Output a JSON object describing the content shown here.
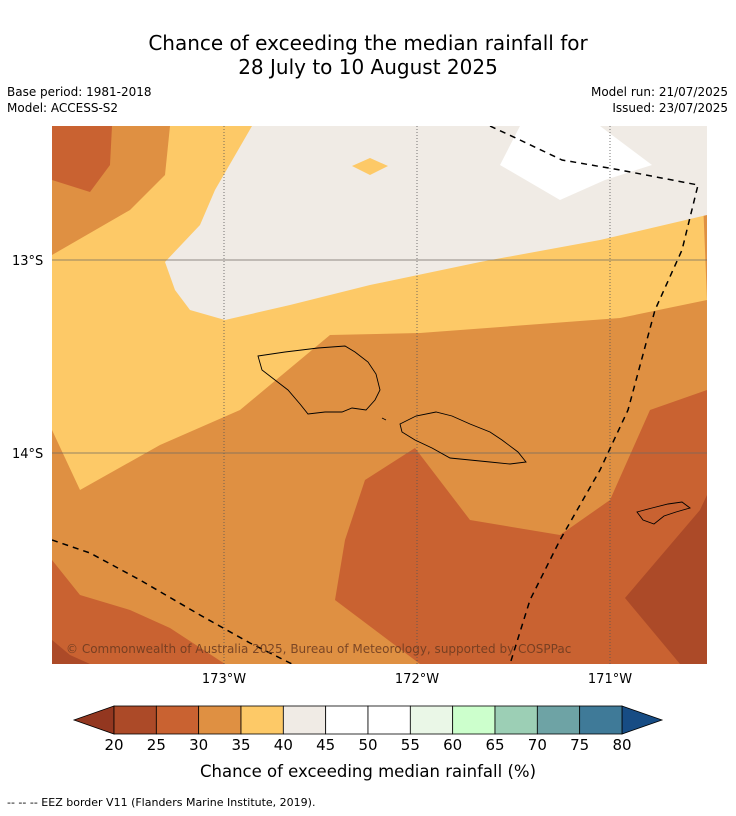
{
  "title": {
    "line1": "Chance of exceeding the median rainfall for",
    "line2": "28 July to 10 August 2025"
  },
  "info": {
    "base_period": "Base period: 1981-2018",
    "model": "Model: ACCESS-S2",
    "model_run": "Model run: 21/07/2025",
    "issued": "Issued: 23/07/2025"
  },
  "map": {
    "lat_labels": [
      {
        "value": -13,
        "text": "13°S"
      },
      {
        "value": -14,
        "text": "14°S"
      }
    ],
    "lon_labels": [
      {
        "value": -173,
        "text": "173°W"
      },
      {
        "value": -172,
        "text": "172°W"
      },
      {
        "value": -171,
        "text": "171°W"
      }
    ],
    "copyright": "© Commonwealth of Australia 2025, Bureau of Meteorology, supported by COSPPac"
  },
  "colorbar": {
    "title": "Chance of exceeding median rainfall (%)",
    "ticks": [
      "20",
      "25",
      "30",
      "35",
      "40",
      "45",
      "50",
      "55",
      "60",
      "65",
      "70",
      "75",
      "80"
    ],
    "colors": [
      "#ac4a28",
      "#c96231",
      "#df9042",
      "#fdc967",
      "#f0ebe5",
      "#ffffff",
      "#ffffff",
      "#eaf7e7",
      "#ccffcc",
      "#9ccfb5",
      "#6ea3a5",
      "#3f7a98"
    ],
    "under_color": "#933720",
    "over_color": "#174c84"
  },
  "legend": {
    "eez_border": "--  --  -- EEZ border V11 (Flanders Marine Institute, 2019)."
  },
  "colors": {
    "c20_25": "#ac4a28",
    "c25_30": "#c96231",
    "c30_35": "#df9042",
    "c35_40": "#fdc967",
    "c40_45": "#f0ebe5",
    "c45_55": "#ffffff"
  }
}
